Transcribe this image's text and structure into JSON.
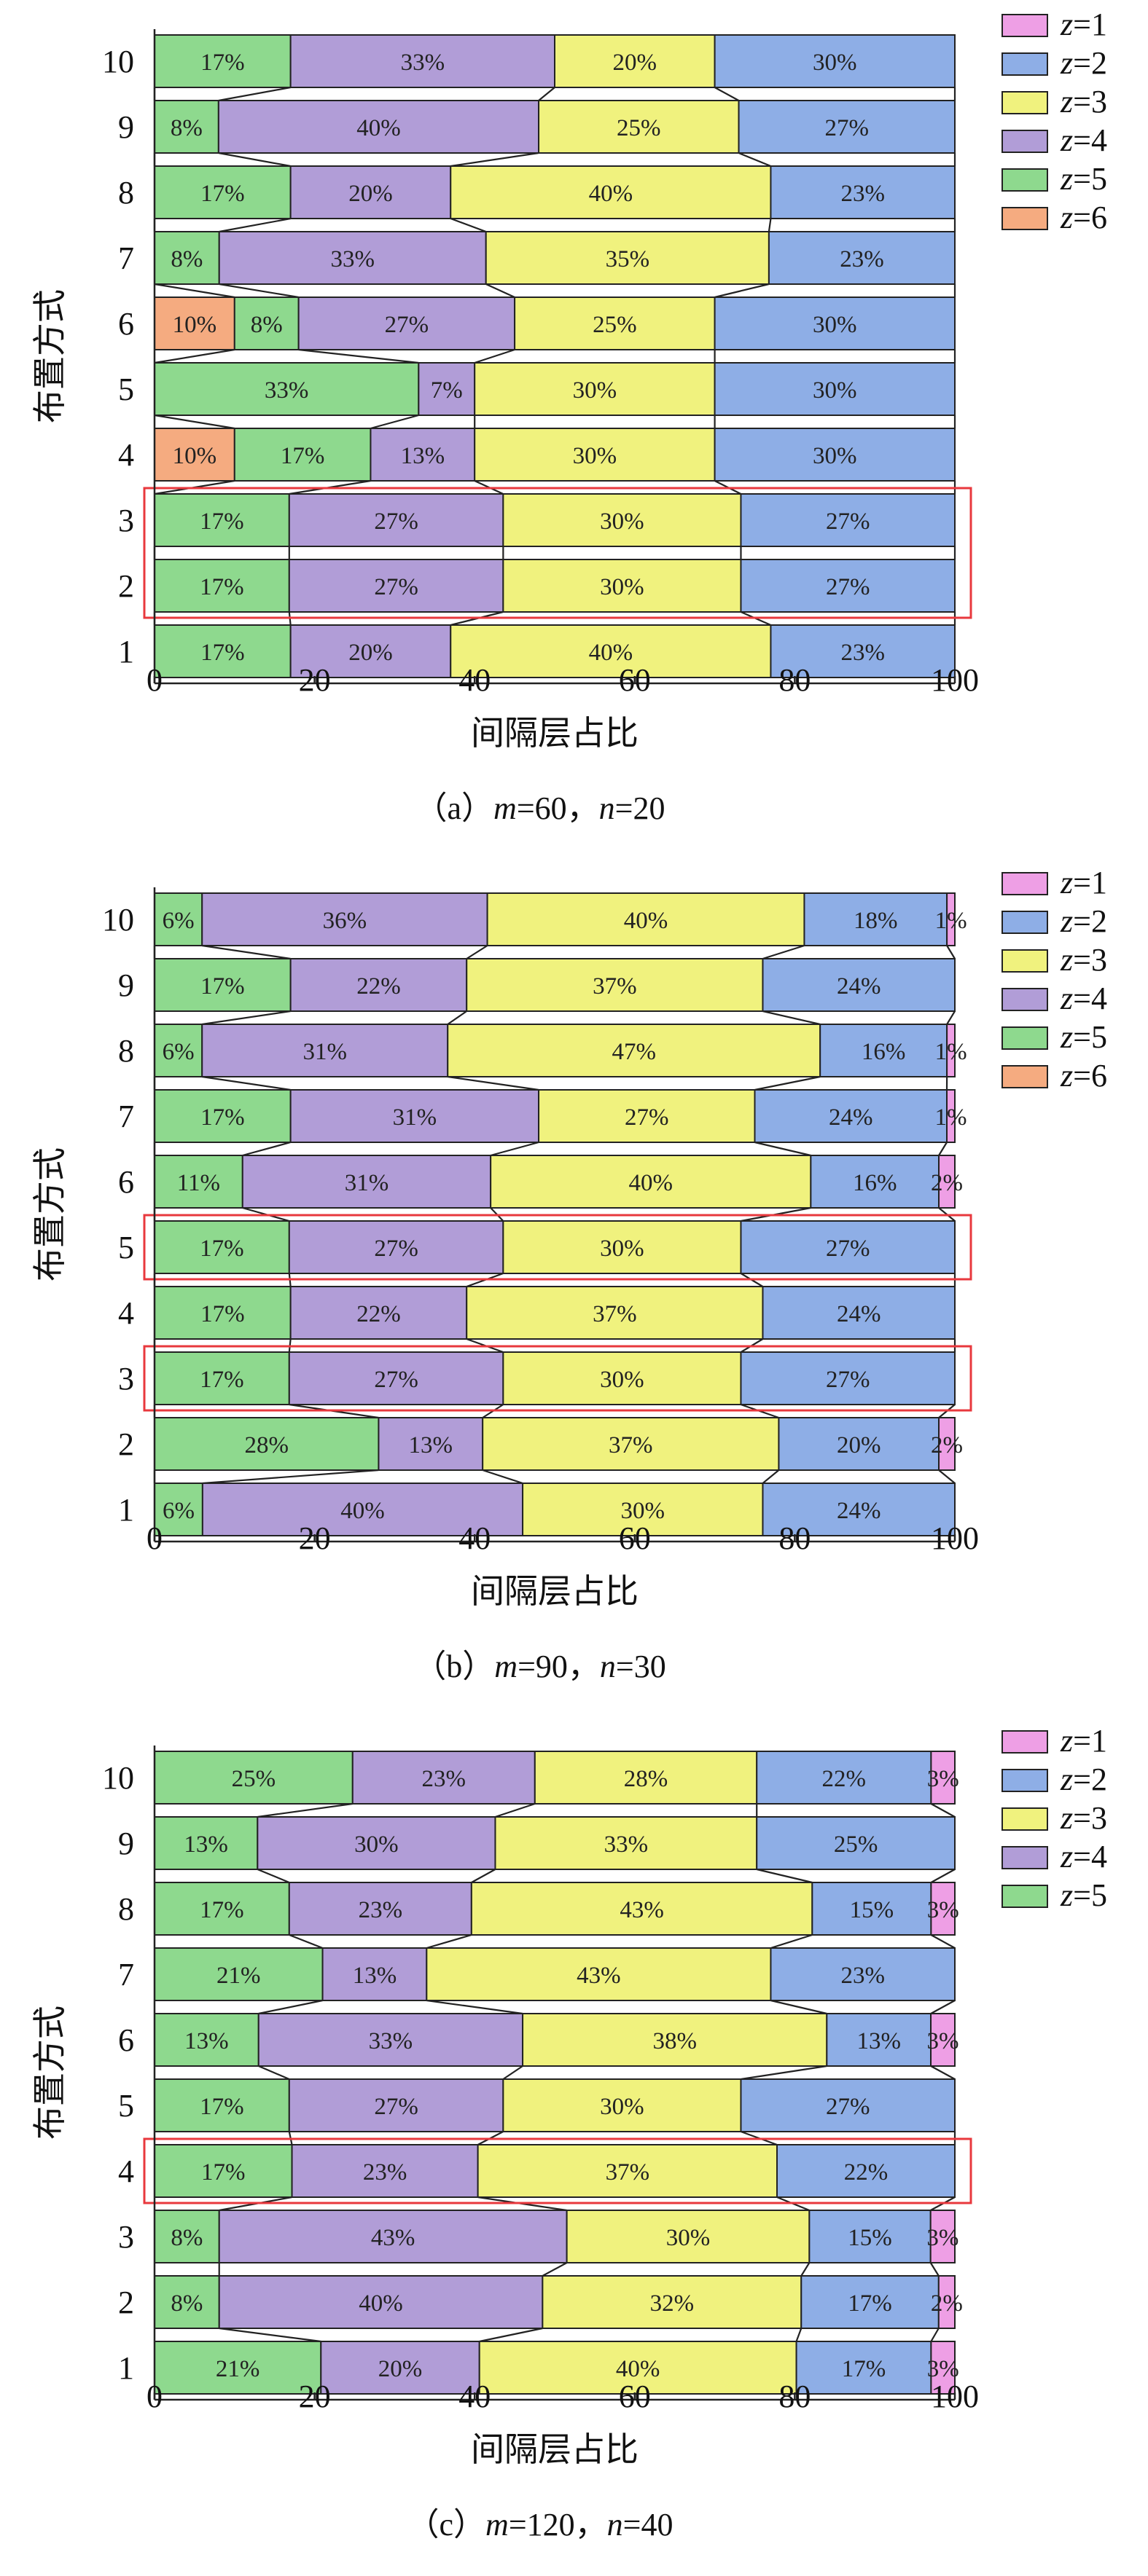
{
  "colors": {
    "z1": "#ee9fe5",
    "z2": "#8eaee6",
    "z3": "#f0f27e",
    "z4": "#b19dd7",
    "z5": "#8ed98e",
    "z6": "#f5ab80",
    "highlight": "#e8383d"
  },
  "chart_data": [
    {
      "type": "bar",
      "orientation": "horizontal-stacked",
      "caption_label": "（a）",
      "caption_vars": [
        {
          "name": "m",
          "value": "=60，"
        },
        {
          "name": "n",
          "value": "=20"
        }
      ],
      "xlabel": "间隔层占比",
      "ylabel": "布置方式",
      "xlim": [
        0,
        100
      ],
      "xticks": [
        "0",
        "20",
        "40",
        "60",
        "80",
        "100"
      ],
      "categories": [
        "1",
        "2",
        "3",
        "4",
        "5",
        "6",
        "7",
        "8",
        "9",
        "10"
      ],
      "legend_position": "right",
      "series": [
        {
          "name": "z=6",
          "key": "z6",
          "values": [
            0,
            0,
            0,
            10,
            0,
            10,
            0,
            0,
            0,
            0
          ],
          "labels": [
            "",
            "",
            "",
            "10%",
            "",
            "10%",
            "",
            "",
            "",
            ""
          ]
        },
        {
          "name": "z=5",
          "key": "z5",
          "values": [
            17,
            17,
            17,
            17,
            33,
            8,
            8,
            17,
            8,
            17
          ],
          "labels": [
            "17%",
            "17%",
            "17%",
            "17%",
            "33%",
            "8%",
            "8%",
            "17%",
            "8%",
            "17%"
          ]
        },
        {
          "name": "z=4",
          "key": "z4",
          "values": [
            20,
            27,
            27,
            13,
            7,
            27,
            33,
            20,
            40,
            33
          ],
          "labels": [
            "20%",
            "27%",
            "27%",
            "13%",
            "7%",
            "27%",
            "33%",
            "20%",
            "40%",
            "33%"
          ]
        },
        {
          "name": "z=3",
          "key": "z3",
          "values": [
            40,
            30,
            30,
            30,
            30,
            25,
            35,
            40,
            25,
            20
          ],
          "labels": [
            "40%",
            "30%",
            "30%",
            "30%",
            "30%",
            "25%",
            "35%",
            "40%",
            "25%",
            "20%"
          ]
        },
        {
          "name": "z=2",
          "key": "z2",
          "values": [
            23,
            27,
            27,
            30,
            30,
            30,
            23,
            23,
            27,
            30
          ],
          "labels": [
            "23%",
            "27%",
            "27%",
            "30%",
            "30%",
            "30%",
            "23%",
            "23%",
            "27%",
            "30%"
          ]
        },
        {
          "name": "z=1",
          "key": "z1",
          "values": [
            0,
            0,
            0,
            0,
            0,
            0,
            0,
            0,
            0,
            0
          ],
          "labels": [
            "",
            "",
            "",
            "",
            "",
            "",
            "",
            "",
            "",
            ""
          ]
        }
      ],
      "highlighted_categories": [
        [
          "2",
          "3"
        ]
      ]
    },
    {
      "type": "bar",
      "orientation": "horizontal-stacked",
      "caption_label": "（b）",
      "caption_vars": [
        {
          "name": "m",
          "value": "=90，"
        },
        {
          "name": "n",
          "value": "=30"
        }
      ],
      "xlabel": "间隔层占比",
      "ylabel": "布置方式",
      "xlim": [
        0,
        100
      ],
      "xticks": [
        "0",
        "20",
        "40",
        "60",
        "80",
        "100"
      ],
      "categories": [
        "1",
        "2",
        "3",
        "4",
        "5",
        "6",
        "7",
        "8",
        "9",
        "10"
      ],
      "legend_position": "right",
      "series": [
        {
          "name": "z=6",
          "key": "z6",
          "values": [
            0,
            0,
            0,
            0,
            0,
            0,
            0,
            0,
            0,
            0
          ],
          "labels": [
            "",
            "",
            "",
            "",
            "",
            "",
            "",
            "",
            "",
            ""
          ]
        },
        {
          "name": "z=5",
          "key": "z5",
          "values": [
            6,
            28,
            17,
            17,
            17,
            11,
            17,
            6,
            17,
            6
          ],
          "labels": [
            "6%",
            "28%",
            "17%",
            "17%",
            "17%",
            "11%",
            "17%",
            "6%",
            "17%",
            "6%"
          ]
        },
        {
          "name": "z=4",
          "key": "z4",
          "values": [
            40,
            13,
            27,
            22,
            27,
            31,
            31,
            31,
            22,
            36
          ],
          "labels": [
            "40%",
            "13%",
            "27%",
            "22%",
            "27%",
            "31%",
            "31%",
            "31%",
            "22%",
            "36%"
          ]
        },
        {
          "name": "z=3",
          "key": "z3",
          "values": [
            30,
            37,
            30,
            37,
            30,
            40,
            27,
            47,
            37,
            40
          ],
          "labels": [
            "30%",
            "37%",
            "30%",
            "37%",
            "30%",
            "40%",
            "27%",
            "47%",
            "37%",
            "40%"
          ]
        },
        {
          "name": "z=2",
          "key": "z2",
          "values": [
            24,
            20,
            27,
            24,
            27,
            16,
            24,
            16,
            24,
            18
          ],
          "labels": [
            "24%",
            "20%",
            "27%",
            "24%",
            "27%",
            "16%",
            "24%",
            "16%",
            "24%",
            "18%"
          ]
        },
        {
          "name": "z=1",
          "key": "z1",
          "values": [
            0,
            2,
            0,
            0,
            0,
            2,
            1,
            1,
            0,
            1
          ],
          "labels": [
            "",
            "2%",
            "",
            "",
            "",
            "2%",
            "1%",
            "1%",
            "",
            "1%"
          ]
        }
      ],
      "highlighted_categories": [
        [
          "3"
        ],
        [
          "5"
        ]
      ]
    },
    {
      "type": "bar",
      "orientation": "horizontal-stacked",
      "caption_label": "（c）",
      "caption_vars": [
        {
          "name": "m",
          "value": "=120，"
        },
        {
          "name": "n",
          "value": "=40"
        }
      ],
      "xlabel": "间隔层占比",
      "ylabel": "布置方式",
      "xlim": [
        0,
        100
      ],
      "xticks": [
        "0",
        "20",
        "40",
        "60",
        "80",
        "100"
      ],
      "categories": [
        "1",
        "2",
        "3",
        "4",
        "5",
        "6",
        "7",
        "8",
        "9",
        "10"
      ],
      "legend_position": "right",
      "series": [
        {
          "name": "z=5",
          "key": "z5",
          "values": [
            21,
            8,
            8,
            17,
            17,
            13,
            21,
            17,
            13,
            25
          ],
          "labels": [
            "21%",
            "8%",
            "8%",
            "17%",
            "17%",
            "13%",
            "21%",
            "17%",
            "13%",
            "25%"
          ]
        },
        {
          "name": "z=4",
          "key": "z4",
          "values": [
            20,
            40,
            43,
            23,
            27,
            33,
            13,
            23,
            30,
            23
          ],
          "labels": [
            "20%",
            "40%",
            "43%",
            "23%",
            "27%",
            "33%",
            "13%",
            "23%",
            "30%",
            "23%"
          ]
        },
        {
          "name": "z=3",
          "key": "z3",
          "values": [
            40,
            32,
            30,
            37,
            30,
            38,
            43,
            43,
            33,
            28
          ],
          "labels": [
            "40%",
            "32%",
            "30%",
            "37%",
            "30%",
            "38%",
            "43%",
            "43%",
            "33%",
            "28%"
          ]
        },
        {
          "name": "z=2",
          "key": "z2",
          "values": [
            17,
            17,
            15,
            22,
            27,
            13,
            23,
            15,
            25,
            22
          ],
          "labels": [
            "17%",
            "17%",
            "15%",
            "22%",
            "27%",
            "13%",
            "23%",
            "15%",
            "25%",
            "22%"
          ]
        },
        {
          "name": "z=1",
          "key": "z1",
          "values": [
            3,
            2,
            3,
            0,
            0,
            3,
            0,
            3,
            0,
            3
          ],
          "labels": [
            "3%",
            "2%",
            "3%",
            "",
            "",
            "3%",
            "",
            "3%",
            "",
            "3%"
          ]
        }
      ],
      "highlighted_categories": [
        [
          "4"
        ]
      ]
    }
  ]
}
